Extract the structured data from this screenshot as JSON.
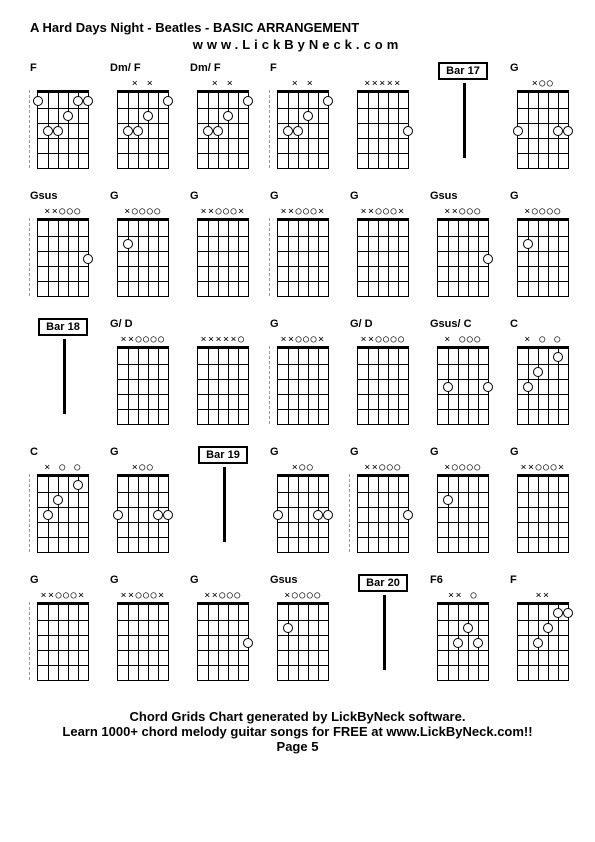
{
  "title": "A Hard Days Night - Beatles - BASIC ARRANGEMENT",
  "subtitle": "www.LickByNeck.com",
  "footer_line1": "Chord Grids Chart generated by LickByNeck software.",
  "footer_line2": "Learn 1000+ chord melody guitar songs for FREE at www.LickByNeck.com!!",
  "page": "Page 5",
  "cells": [
    {
      "type": "chord",
      "label": "F",
      "symbols": "",
      "dots": [
        {
          "s": 0,
          "f": 1
        },
        {
          "s": 1,
          "f": 3
        },
        {
          "s": 2,
          "f": 3
        },
        {
          "s": 3,
          "f": 2
        },
        {
          "s": 4,
          "f": 1
        },
        {
          "s": 5,
          "f": 1
        }
      ],
      "dash": true
    },
    {
      "type": "chord",
      "label": "Dm/ F",
      "symbols": "x   x",
      "dots": [
        {
          "s": 1,
          "f": 3
        },
        {
          "s": 2,
          "f": 3
        },
        {
          "s": 3,
          "f": 2
        },
        {
          "s": 5,
          "f": 1
        }
      ]
    },
    {
      "type": "chord",
      "label": "Dm/ F",
      "symbols": "x   x",
      "dots": [
        {
          "s": 1,
          "f": 3
        },
        {
          "s": 2,
          "f": 3
        },
        {
          "s": 3,
          "f": 2
        },
        {
          "s": 5,
          "f": 1
        }
      ]
    },
    {
      "type": "chord",
      "label": "F",
      "symbols": "x   x",
      "dots": [
        {
          "s": 1,
          "f": 3
        },
        {
          "s": 2,
          "f": 3
        },
        {
          "s": 3,
          "f": 2
        },
        {
          "s": 5,
          "f": 1
        }
      ],
      "dash": true
    },
    {
      "type": "chord",
      "label": "",
      "symbols": "xxxxx",
      "dots": [
        {
          "s": 5,
          "f": 3
        }
      ]
    },
    {
      "type": "bar",
      "label": "Bar 17"
    },
    {
      "type": "chord",
      "label": "G",
      "symbols": " xoo",
      "dots": [
        {
          "s": 0,
          "f": 3
        },
        {
          "s": 4,
          "f": 3
        },
        {
          "s": 5,
          "f": 3
        }
      ]
    },
    {
      "type": "chord",
      "label": "Gsus",
      "symbols": "xxooo",
      "dots": [
        {
          "s": 5,
          "f": 3
        }
      ],
      "dash": true
    },
    {
      "type": "chord",
      "label": "G",
      "symbols": "xoooo",
      "dots": [
        {
          "s": 1,
          "f": 2
        }
      ]
    },
    {
      "type": "chord",
      "label": "G",
      "symbols": "xxooox",
      "dots": []
    },
    {
      "type": "chord",
      "label": "G",
      "symbols": "xxooox",
      "dots": [],
      "dash": true
    },
    {
      "type": "chord",
      "label": "G",
      "symbols": "xxooox",
      "dots": []
    },
    {
      "type": "chord",
      "label": "Gsus",
      "symbols": "xxooo",
      "dots": [
        {
          "s": 5,
          "f": 3
        }
      ]
    },
    {
      "type": "chord",
      "label": "G",
      "symbols": "xoooo",
      "dots": [
        {
          "s": 1,
          "f": 2
        }
      ]
    },
    {
      "type": "bar",
      "label": "Bar 18"
    },
    {
      "type": "chord",
      "label": "G/ D",
      "symbols": "xxoooo",
      "dots": []
    },
    {
      "type": "chord",
      "label": "",
      "symbols": "xxxxxo",
      "dots": []
    },
    {
      "type": "chord",
      "label": "G",
      "symbols": "xxooox",
      "dots": [],
      "dash": true
    },
    {
      "type": "chord",
      "label": "G/ D",
      "symbols": "xxoooo",
      "dots": []
    },
    {
      "type": "chord",
      "label": "Gsus/ C",
      "symbols": "x ooo",
      "dots": [
        {
          "s": 1,
          "f": 3
        },
        {
          "s": 5,
          "f": 3
        }
      ]
    },
    {
      "type": "chord",
      "label": "C",
      "symbols": "x  o o",
      "dots": [
        {
          "s": 1,
          "f": 3
        },
        {
          "s": 2,
          "f": 2
        },
        {
          "s": 4,
          "f": 1
        }
      ]
    },
    {
      "type": "chord",
      "label": "C",
      "symbols": "x  o o",
      "dots": [
        {
          "s": 1,
          "f": 3
        },
        {
          "s": 2,
          "f": 2
        },
        {
          "s": 4,
          "f": 1
        }
      ],
      "dash": true
    },
    {
      "type": "chord",
      "label": "G",
      "symbols": " xoo",
      "dots": [
        {
          "s": 0,
          "f": 3
        },
        {
          "s": 4,
          "f": 3
        },
        {
          "s": 5,
          "f": 3
        }
      ]
    },
    {
      "type": "bar",
      "label": "Bar 19"
    },
    {
      "type": "chord",
      "label": "G",
      "symbols": " xoo",
      "dots": [
        {
          "s": 0,
          "f": 3
        },
        {
          "s": 4,
          "f": 3
        },
        {
          "s": 5,
          "f": 3
        }
      ]
    },
    {
      "type": "chord",
      "label": "G",
      "symbols": "xxooo",
      "dots": [
        {
          "s": 5,
          "f": 3
        }
      ],
      "dash": true
    },
    {
      "type": "chord",
      "label": "G",
      "symbols": "xoooo",
      "dots": [
        {
          "s": 1,
          "f": 2
        }
      ]
    },
    {
      "type": "chord",
      "label": "G",
      "symbols": "xxooox",
      "dots": []
    },
    {
      "type": "chord",
      "label": "G",
      "symbols": "xxooox",
      "dots": [],
      "dash": true
    },
    {
      "type": "chord",
      "label": "G",
      "symbols": "xxooox",
      "dots": []
    },
    {
      "type": "chord",
      "label": "G",
      "symbols": "xxooo",
      "dots": [
        {
          "s": 5,
          "f": 3
        }
      ]
    },
    {
      "type": "chord",
      "label": "Gsus",
      "symbols": "xoooo",
      "dots": [
        {
          "s": 1,
          "f": 2
        }
      ]
    },
    {
      "type": "bar",
      "label": "Bar 20"
    },
    {
      "type": "chord",
      "label": "F6",
      "symbols": "xx   o",
      "dots": [
        {
          "s": 2,
          "f": 3
        },
        {
          "s": 3,
          "f": 2
        },
        {
          "s": 4,
          "f": 3
        }
      ]
    },
    {
      "type": "chord",
      "label": "F",
      "symbols": "xx",
      "dots": [
        {
          "s": 2,
          "f": 3
        },
        {
          "s": 3,
          "f": 2
        },
        {
          "s": 4,
          "f": 1
        },
        {
          "s": 5,
          "f": 1
        }
      ]
    }
  ],
  "strings": 6,
  "frets": 5,
  "colors": {
    "bg": "#ffffff",
    "line": "#000000",
    "dot_fill": "#ffffff",
    "dot_border": "#000000"
  }
}
